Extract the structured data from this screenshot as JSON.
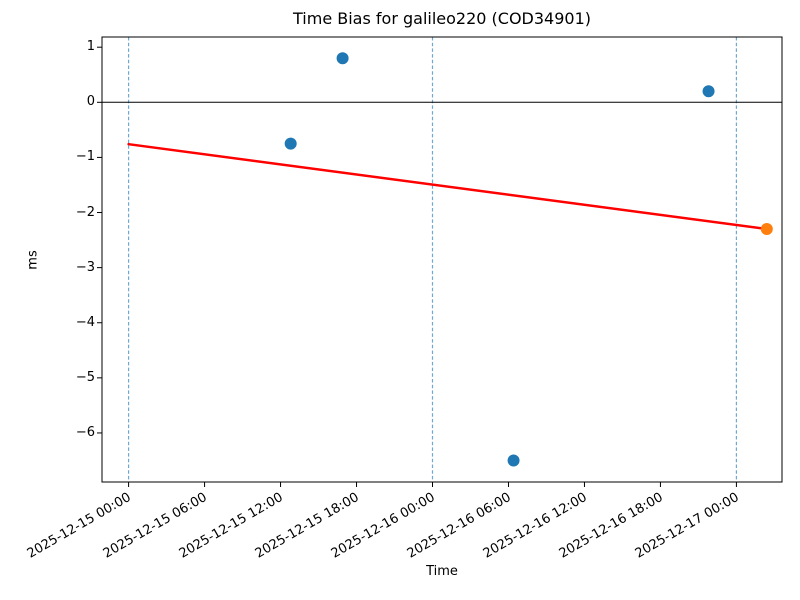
{
  "chart_data": {
    "type": "scatter",
    "title": "Time Bias for galileo220 (COD34901)",
    "xlabel": "Time",
    "ylabel": "ms",
    "legend": "none",
    "x_origin": "2025-12-15 00:00",
    "xlim_hours": [
      -2.1,
      51.6
    ],
    "ylim": [
      -6.89,
      1.185
    ],
    "x_ticks": [
      {
        "hours": 0,
        "label": "2025-12-15 00:00"
      },
      {
        "hours": 6,
        "label": "2025-12-15 06:00"
      },
      {
        "hours": 12,
        "label": "2025-12-15 12:00"
      },
      {
        "hours": 18,
        "label": "2025-12-15 18:00"
      },
      {
        "hours": 24,
        "label": "2025-12-16 00:00"
      },
      {
        "hours": 30,
        "label": "2025-12-16 06:00"
      },
      {
        "hours": 36,
        "label": "2025-12-16 12:00"
      },
      {
        "hours": 42,
        "label": "2025-12-16 18:00"
      },
      {
        "hours": 48,
        "label": "2025-12-17 00:00"
      }
    ],
    "y_ticks": [
      {
        "value": 1,
        "label": "1"
      },
      {
        "value": 0,
        "label": "0"
      },
      {
        "value": -1,
        "label": "−1"
      },
      {
        "value": -2,
        "label": "−2"
      },
      {
        "value": -3,
        "label": "−3"
      },
      {
        "value": -4,
        "label": "−4"
      },
      {
        "value": -5,
        "label": "−5"
      },
      {
        "value": -6,
        "label": "−6"
      }
    ],
    "series": [
      {
        "name": "time-bias-points",
        "color": "#1f77b4",
        "marker": "circle",
        "points": [
          {
            "time": "2025-12-15 12:45",
            "hours": 12.8,
            "ms": -0.75
          },
          {
            "time": "2025-12-15 16:55",
            "hours": 16.9,
            "ms": 0.8
          },
          {
            "time": "2025-12-16 06:25",
            "hours": 30.4,
            "ms": -6.5
          },
          {
            "time": "2025-12-16 21:50",
            "hours": 45.8,
            "ms": 0.2
          }
        ]
      },
      {
        "name": "latest-point",
        "color": "#ff7f0e",
        "marker": "circle",
        "points": [
          {
            "time": "2025-12-17 02:25",
            "hours": 50.4,
            "ms": -2.3
          }
        ]
      }
    ],
    "trend_line": {
      "color": "#ff0000",
      "width": 2.5,
      "start": {
        "hours": 0,
        "ms": -0.76
      },
      "end": {
        "hours": 50.4,
        "ms": -2.3
      }
    },
    "zero_line": {
      "value": 0,
      "color": "#000000"
    },
    "day_lines": {
      "style": "dashed",
      "color": "#6fa8d2",
      "hours": [
        0,
        24,
        48
      ],
      "labels": [
        "2025-12-15 00:00",
        "2025-12-16 00:00",
        "2025-12-17 00:00"
      ]
    },
    "axis_color": "#000000",
    "background": "#ffffff"
  }
}
